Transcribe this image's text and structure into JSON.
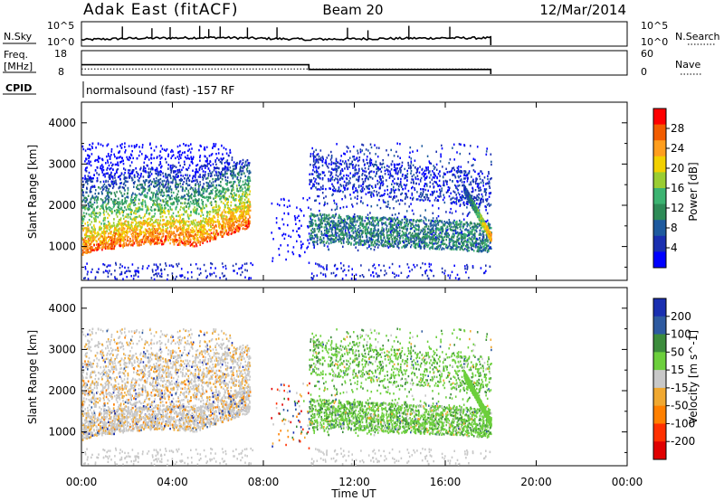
{
  "header": {
    "station": "Adak East (fitACF)",
    "beam": "Beam 20",
    "date": "12/Mar/2014"
  },
  "sky_panel": {
    "left_label": "N.Sky",
    "left_ticks": [
      "10^5",
      "10^0"
    ],
    "right_label": "N.Search",
    "right_ticks": [
      "10^5",
      "10^0"
    ]
  },
  "freq_panel": {
    "left_label_1": "Freq.",
    "left_label_2": "[MHz]",
    "left_ticks": [
      "18",
      "8"
    ],
    "right_label": "Nave",
    "right_ticks": [
      "60",
      "0"
    ]
  },
  "cpid": {
    "label": "CPID",
    "text": "normalsound (fast) -157 RF"
  },
  "xaxis": {
    "label": "Time UT",
    "ticks": [
      "00:00",
      "04:00",
      "08:00",
      "12:00",
      "16:00",
      "20:00",
      "00:00"
    ]
  },
  "power_colorbar": {
    "label": "Power [dB]",
    "ticks": [
      "28",
      "24",
      "20",
      "16",
      "12",
      "8",
      "4"
    ],
    "colors": [
      "#ff0000",
      "#f25c00",
      "#ff9e1e",
      "#f2d000",
      "#9acd32",
      "#3cb371",
      "#2e8b57",
      "#1e5a9e",
      "#1a2fb0",
      "#0000ff"
    ]
  },
  "velocity_colorbar": {
    "label": "Velocity [m s^-1]",
    "ticks": [
      "200",
      "100",
      "50",
      "15",
      "-15",
      "-50",
      "-100",
      "-200"
    ],
    "colors": [
      "#1a2fb0",
      "#2e5aa0",
      "#3c8c3c",
      "#6ccf3c",
      "#c8c8c8",
      "#f0a830",
      "#ff8000",
      "#ff3000",
      "#e00000"
    ]
  },
  "chart_data": [
    {
      "type": "line",
      "title": "N.Sky",
      "x": [
        0.0,
        2.0,
        4.0,
        6.0,
        8.0,
        10.0,
        12.0,
        14.0,
        16.0,
        18.0,
        18.0
      ],
      "series": [
        {
          "name": "",
          "values": [
            1.2,
            1.5,
            1.6,
            1.7,
            1.5,
            1.3,
            1.4,
            1.5,
            1.6,
            1.6,
            0
          ]
        }
      ],
      "xlim": [
        0,
        24
      ],
      "ylim": [
        0,
        5
      ],
      "yscale": "log"
    },
    {
      "type": "line",
      "title": "Freq.",
      "x": [
        0.0,
        10.0,
        10.0,
        18.0,
        18.0
      ],
      "series": [
        {
          "name": "",
          "values": [
            12,
            12,
            10,
            10,
            8
          ]
        },
        {
          "name": "",
          "values": [
            10.2,
            10.2,
            10.2,
            10.2,
            10.2
          ]
        }
      ],
      "xlim": [
        0,
        24
      ],
      "ylim": [
        8,
        18
      ]
    },
    {
      "type": "heatmap",
      "title": "",
      "ylabel": "Slant Range [km]",
      "xlabel": "",
      "xlim": [
        0,
        24
      ],
      "ylim": [
        180,
        4500
      ],
      "yticks": [
        1000,
        2000,
        3000,
        4000
      ],
      "colorbar": {
        "label": "Power [dB]",
        "ticks": [
          28,
          24,
          20,
          16,
          12,
          8,
          4
        ]
      },
      "features": [
        {
          "hours": [
            0.0,
            7.5
          ],
          "range_km": [
            800,
            3500
          ],
          "power_db": [
            4,
            30
          ]
        },
        {
          "hours": [
            10.0,
            18.0
          ],
          "range_km": [
            800,
            3500
          ],
          "power_db": [
            4,
            16
          ]
        }
      ]
    },
    {
      "type": "heatmap",
      "title": "",
      "ylabel": "Slant Range [km]",
      "xlabel": "Time UT",
      "xlim": [
        0,
        24
      ],
      "ylim": [
        180,
        4500
      ],
      "yticks": [
        1000,
        2000,
        3000,
        4000
      ],
      "colorbar": {
        "label": "Velocity [m s^-1]",
        "ticks": [
          200,
          100,
          50,
          15,
          -15,
          -50,
          -100,
          -200
        ]
      },
      "features": [
        {
          "hours": [
            0.0,
            7.5
          ],
          "range_km": [
            800,
            3500
          ],
          "velocity_ms": [
            -50,
            15
          ]
        },
        {
          "hours": [
            10.0,
            18.0
          ],
          "range_km": [
            800,
            3500
          ],
          "velocity_ms": [
            15,
            50
          ]
        }
      ]
    }
  ]
}
